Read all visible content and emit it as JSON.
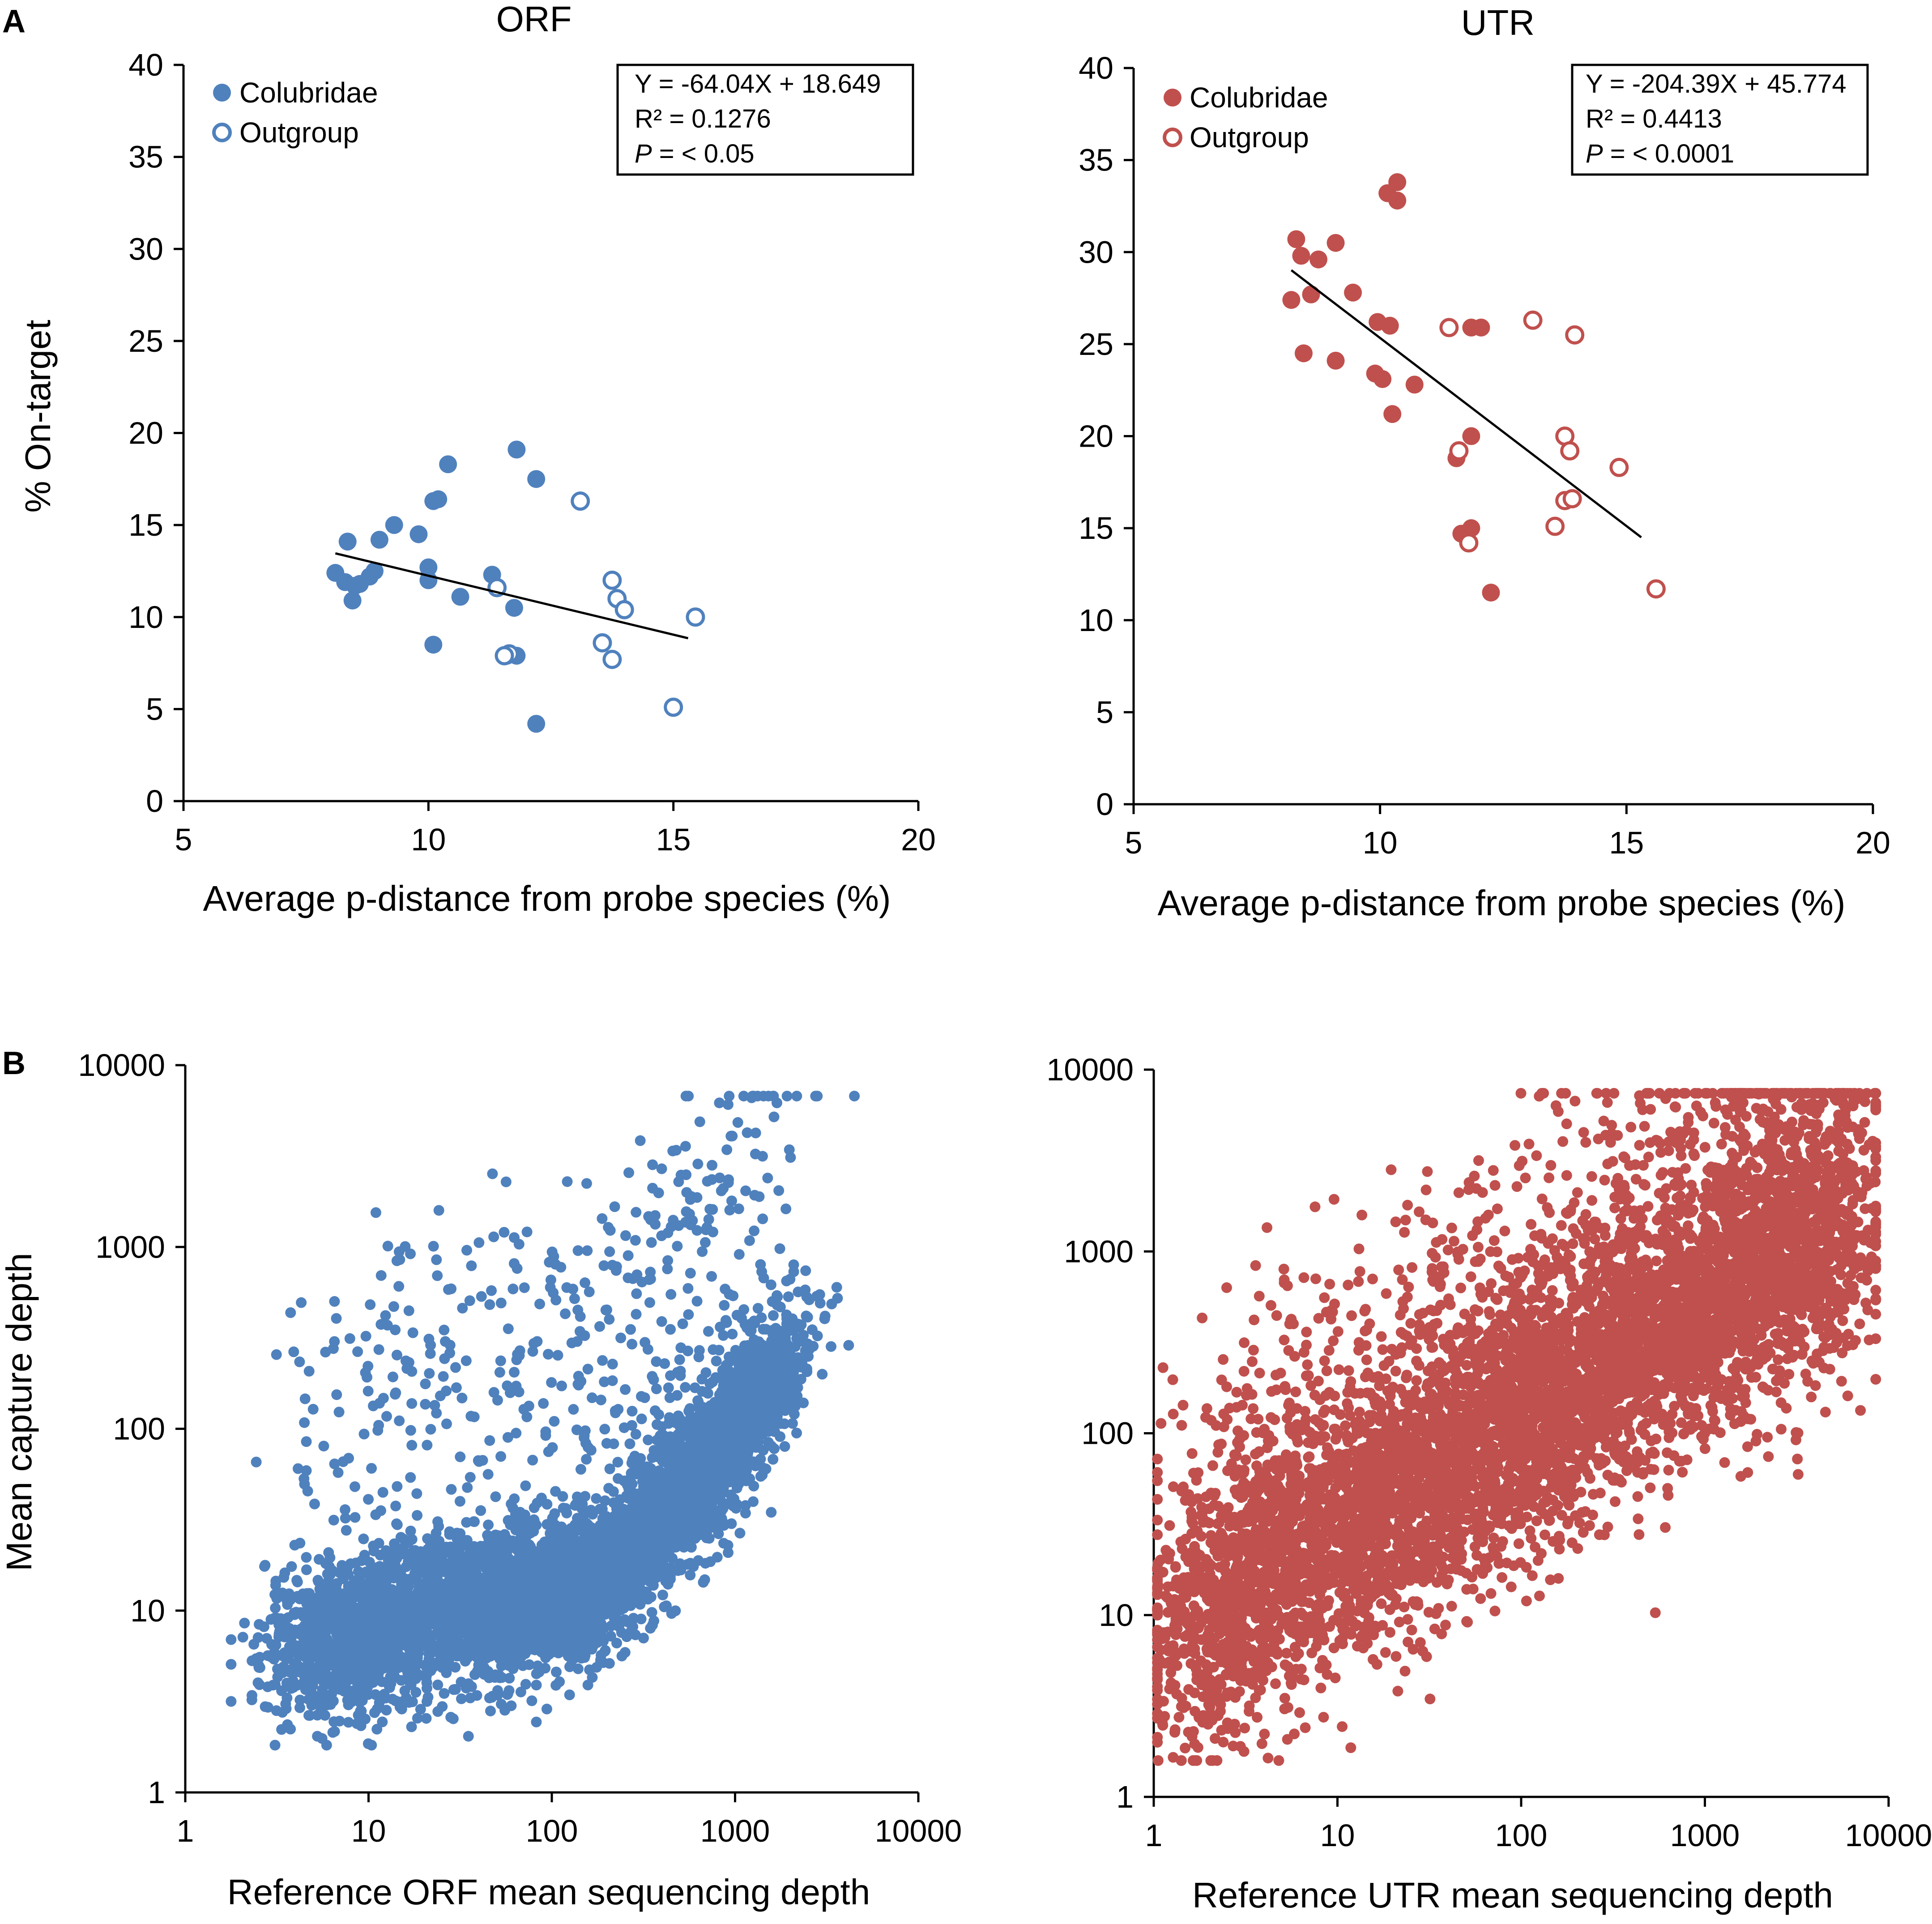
{
  "figure": {
    "panel_A_letter": "A",
    "panel_B_letter": "B",
    "colors": {
      "orf": "#4F81BD",
      "utr": "#C0504D",
      "axis": "#000000"
    }
  },
  "chart_data": [
    {
      "type": "scatter",
      "id": "A-ORF",
      "title": "ORF",
      "xlabel": "Average p-distance from probe species (%)",
      "ylabel": "% On-target",
      "xlim": [
        5,
        20
      ],
      "ylim": [
        0,
        40
      ],
      "xticks": [
        "5",
        "10",
        "15",
        "20"
      ],
      "yticks": [
        "0",
        "5",
        "10",
        "15",
        "20",
        "25",
        "30",
        "35",
        "40"
      ],
      "legend": {
        "position": "top-left",
        "filled": "Colubridae",
        "open": "Outgroup"
      },
      "stats": {
        "line1": "Y = -64.04X + 18.649",
        "line2": "R² = 0.1276",
        "p_label": "P",
        "p_value": " = < 0.05"
      },
      "trendline": {
        "x": [
          8.1,
          15.3
        ]
      },
      "series": [
        {
          "name": "Colubridae",
          "style": "filled",
          "x": [
            8.1,
            8.3,
            8.5,
            8.6,
            8.9,
            8.8,
            8.35,
            8.45,
            9.3,
            9.0,
            9.8,
            10.0,
            10.2,
            10.1,
            10.4,
            10.0,
            10.65,
            11.8,
            12.2,
            11.3,
            11.75,
            11.6,
            11.8,
            10.1,
            12.2
          ],
          "y": [
            12.4,
            11.9,
            11.7,
            11.8,
            12.5,
            12.2,
            14.1,
            10.9,
            15.0,
            14.2,
            14.5,
            12.7,
            16.4,
            16.3,
            18.3,
            12.0,
            11.1,
            19.1,
            17.5,
            12.3,
            10.5,
            7.9,
            7.9,
            8.5,
            4.2
          ]
        },
        {
          "name": "Outgroup",
          "style": "open",
          "x": [
            13.1,
            11.4,
            13.75,
            13.85,
            14.0,
            13.55,
            13.75,
            11.65,
            11.55,
            15.0,
            15.45
          ],
          "y": [
            16.3,
            11.6,
            12.0,
            11.0,
            10.4,
            8.6,
            7.7,
            8.0,
            7.9,
            5.1,
            10.0
          ]
        }
      ]
    },
    {
      "type": "scatter",
      "id": "A-UTR",
      "title": "UTR",
      "xlabel": "Average p-distance from probe species (%)",
      "ylabel": "",
      "xlim": [
        5,
        20
      ],
      "ylim": [
        0,
        40
      ],
      "xticks": [
        "5",
        "10",
        "15",
        "20"
      ],
      "yticks": [
        "0",
        "5",
        "10",
        "15",
        "20",
        "25",
        "30",
        "35",
        "40"
      ],
      "legend": {
        "position": "top-left",
        "filled": "Colubridae",
        "open": "Outgroup"
      },
      "stats": {
        "line1": "Y = -204.39X + 45.774",
        "line2": "R² = 0.4413",
        "p_label": "P",
        "p_value": " = < 0.0001"
      },
      "trendline": {
        "x": [
          8.2,
          15.3
        ]
      },
      "series": [
        {
          "name": "Colubridae",
          "style": "filled",
          "x": [
            8.3,
            8.4,
            8.2,
            8.75,
            9.1,
            8.6,
            9.45,
            9.95,
            10.2,
            10.35,
            10.15,
            10.35,
            10.05,
            10.25,
            10.7,
            9.9,
            11.85,
            12.05,
            11.85,
            11.55,
            11.65,
            11.85,
            12.25,
            8.45,
            9.1
          ],
          "y": [
            30.7,
            29.8,
            27.4,
            29.6,
            30.5,
            27.7,
            27.8,
            26.2,
            26.0,
            33.8,
            33.2,
            32.8,
            23.1,
            21.2,
            22.8,
            23.4,
            25.9,
            25.9,
            20.0,
            18.8,
            14.7,
            15.0,
            11.5,
            24.5,
            24.1
          ]
        },
        {
          "name": "Outgroup",
          "style": "open",
          "x": [
            11.4,
            13.1,
            13.95,
            13.75,
            13.85,
            13.75,
            13.9,
            14.85,
            11.6,
            11.8,
            13.55,
            15.6
          ],
          "y": [
            25.9,
            26.3,
            25.5,
            20.0,
            19.2,
            16.5,
            16.6,
            18.3,
            19.2,
            14.2,
            15.1,
            11.7
          ]
        }
      ]
    },
    {
      "type": "scatter",
      "id": "B-ORF",
      "title": "",
      "xlabel": "Reference ORF mean sequencing depth",
      "ylabel": "Mean capture depth",
      "xscale": "log",
      "yscale": "log",
      "xlim": [
        1,
        10000
      ],
      "ylim": [
        1,
        10000
      ],
      "xticks": [
        "1",
        "10",
        "100",
        "1000",
        "10000"
      ],
      "yticks": [
        "1",
        "10",
        "100",
        "1000",
        "10000"
      ],
      "series": [
        {
          "name": "ORF",
          "style": "filled",
          "points": "dense cloud of several thousand genes (~log-linear upward trend, steeper above 1000)"
        }
      ]
    },
    {
      "type": "scatter",
      "id": "B-UTR",
      "title": "",
      "xlabel": "Reference UTR mean sequencing depth",
      "ylabel": "",
      "xscale": "log",
      "yscale": "log",
      "xlim": [
        1,
        10000
      ],
      "ylim": [
        1,
        10000
      ],
      "xticks": [
        "1",
        "10",
        "100",
        "1000",
        "10000"
      ],
      "yticks": [
        "1",
        "10",
        "100",
        "1000",
        "10000"
      ],
      "series": [
        {
          "name": "UTR",
          "style": "filled",
          "points": "dense cloud of several thousand regions (broad log-linear upward trend)"
        }
      ]
    }
  ]
}
